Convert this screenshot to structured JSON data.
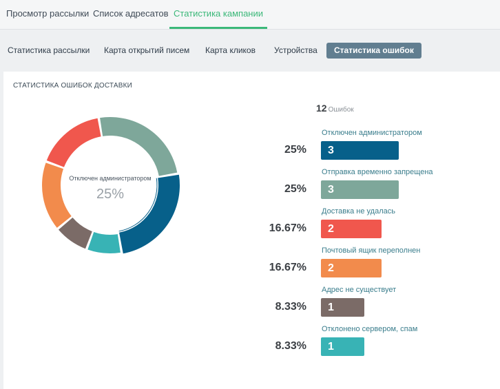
{
  "top_tabs": [
    {
      "label": "Просмотр рассылки"
    },
    {
      "label": "Список адресатов"
    },
    {
      "label": "Статистика кампании"
    }
  ],
  "sub_tabs": [
    {
      "label": "Статистика рассылки"
    },
    {
      "label": "Карта открытий писем"
    },
    {
      "label": "Карта кликов"
    },
    {
      "label": "Устройства"
    },
    {
      "label": "Статистика ошибок"
    }
  ],
  "panel": {
    "title": "СТАТИСТИКА ОШИБОК ДОСТАВКИ",
    "center_label": "Отключен администратором",
    "center_value": "25%",
    "total_count": "12",
    "total_unit": "Ошибок"
  },
  "chart_data": {
    "type": "pie",
    "categories": [
      "Отключен администратором",
      "Отправка временно запрещена",
      "Доставка не удалась",
      "Почтовый ящик переполнен",
      "Адрес не существует",
      "Отклонено сервером, спам"
    ],
    "values": [
      3,
      3,
      2,
      2,
      1,
      1
    ],
    "percents": [
      "25%",
      "25%",
      "16.67%",
      "16.67%",
      "8.33%",
      "8.33%"
    ],
    "colors": [
      "#07608a",
      "#7ea79a",
      "#f0574d",
      "#f28b4c",
      "#7b6b67",
      "#38b3b5"
    ]
  },
  "rows": [
    {
      "label": "Отключен администратором",
      "count": "3",
      "pct": "25%"
    },
    {
      "label": "Отправка временно запрещена",
      "count": "3",
      "pct": "25%"
    },
    {
      "label": "Доставка не удалась",
      "count": "2",
      "pct": "16.67%"
    },
    {
      "label": "Почтовый ящик переполнен",
      "count": "2",
      "pct": "16.67%"
    },
    {
      "label": "Адрес не существует",
      "count": "1",
      "pct": "8.33%"
    },
    {
      "label": "Отклонено сервером, спам",
      "count": "1",
      "pct": "8.33%"
    }
  ]
}
